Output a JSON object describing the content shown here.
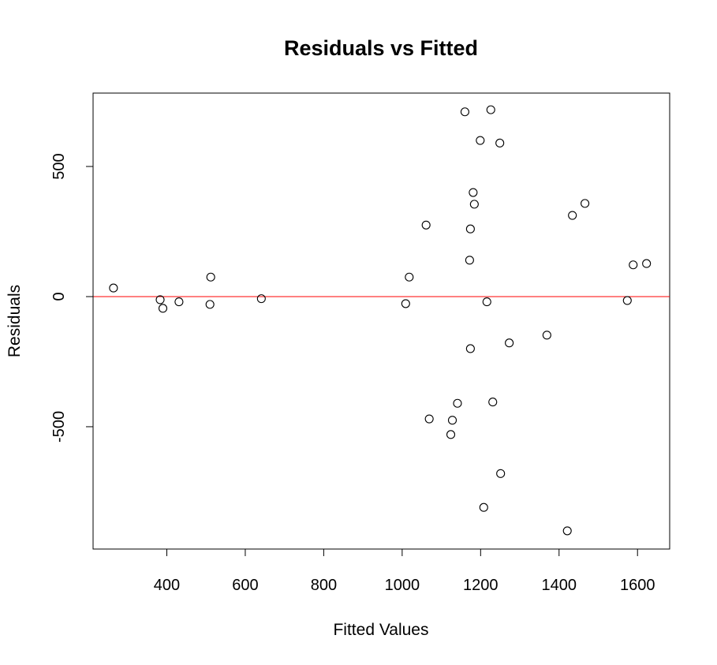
{
  "chart_data": {
    "type": "scatter",
    "title": "Residuals vs Fitted",
    "xlabel": "Fitted Values",
    "ylabel": "Residuals",
    "xlim": [
      212,
      1682
    ],
    "ylim": [
      -970,
      782
    ],
    "x_ticks": [
      400,
      600,
      800,
      1000,
      1200,
      1400,
      1600
    ],
    "y_ticks": [
      -500,
      0,
      500
    ],
    "reference_line": {
      "y": 0,
      "color": "#ff0000"
    },
    "grid": false,
    "legend": "none",
    "points": [
      {
        "x": 264,
        "y": 33
      },
      {
        "x": 383,
        "y": -12
      },
      {
        "x": 390,
        "y": -45
      },
      {
        "x": 431,
        "y": -20
      },
      {
        "x": 510,
        "y": -30
      },
      {
        "x": 512,
        "y": 75
      },
      {
        "x": 641,
        "y": -8
      },
      {
        "x": 1009,
        "y": -27
      },
      {
        "x": 1018,
        "y": 75
      },
      {
        "x": 1061,
        "y": 275
      },
      {
        "x": 1069,
        "y": -470
      },
      {
        "x": 1124,
        "y": -530
      },
      {
        "x": 1128,
        "y": -475
      },
      {
        "x": 1141,
        "y": -410
      },
      {
        "x": 1160,
        "y": 710
      },
      {
        "x": 1172,
        "y": 140
      },
      {
        "x": 1174,
        "y": 260
      },
      {
        "x": 1174,
        "y": -200
      },
      {
        "x": 1181,
        "y": 400
      },
      {
        "x": 1184,
        "y": 355
      },
      {
        "x": 1199,
        "y": 600
      },
      {
        "x": 1208,
        "y": -810
      },
      {
        "x": 1216,
        "y": -20
      },
      {
        "x": 1226,
        "y": 718
      },
      {
        "x": 1231,
        "y": -405
      },
      {
        "x": 1249,
        "y": 590
      },
      {
        "x": 1251,
        "y": -680
      },
      {
        "x": 1273,
        "y": -178
      },
      {
        "x": 1369,
        "y": -148
      },
      {
        "x": 1421,
        "y": -900
      },
      {
        "x": 1434,
        "y": 312
      },
      {
        "x": 1466,
        "y": 358
      },
      {
        "x": 1574,
        "y": -15
      },
      {
        "x": 1589,
        "y": 122
      },
      {
        "x": 1623,
        "y": 127
      }
    ],
    "colors": {
      "points": "#000000",
      "reference_line": "#ff0000",
      "frame": "#000000"
    }
  }
}
